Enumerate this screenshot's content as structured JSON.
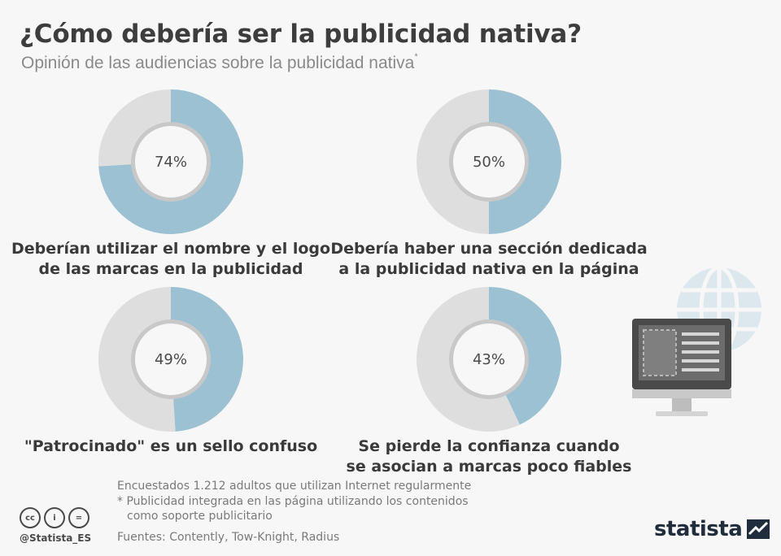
{
  "header": {
    "title": "¿Cómo debería ser la publicidad nativa?",
    "subtitle": "Opinión de las audiencias sobre la publicidad nativa",
    "subtitle_mark": "*"
  },
  "chart_data": [
    {
      "type": "pie",
      "values": [
        74,
        26
      ],
      "label": "74%",
      "caption": [
        "Deberían utilizar el nombre y el logo",
        "de las marcas en la publicidad"
      ]
    },
    {
      "type": "pie",
      "values": [
        50,
        50
      ],
      "label": "50%",
      "caption": [
        "Debería haber una sección dedicada",
        "a la publicidad nativa en la página"
      ]
    },
    {
      "type": "pie",
      "values": [
        49,
        51
      ],
      "label": "49%",
      "caption": [
        "\"Patrocinado\" es un sello confuso"
      ]
    },
    {
      "type": "pie",
      "values": [
        43,
        57
      ],
      "label": "43%",
      "caption": [
        "Se pierde la confianza cuando",
        "se asocian a marcas poco fiables"
      ]
    }
  ],
  "colors": {
    "value": "#9cc1d3",
    "remainder": "#dedede",
    "inner_ring": "#c8c8c8",
    "center": "#f7f7f7"
  },
  "footer": {
    "note1": "Encuestados 1.212 adultos que utilizan Internet regularmente",
    "note2": "* Publicidad integrada en las página utilizando los contenidos",
    "note3": "como soporte publicitario",
    "sources": "Fuentes: Contently, Tow-Knight, Radius",
    "handle": "@Statista_ES",
    "license_icons": [
      "cc-icon",
      "by-icon",
      "nd-icon"
    ],
    "license_glyphs": [
      "cc",
      "i",
      "="
    ],
    "brand": "statista"
  }
}
